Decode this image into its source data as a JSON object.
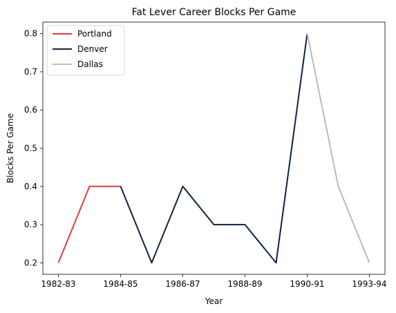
{
  "chart_data": {
    "type": "line",
    "title": "Fat Lever Career Blocks Per Game",
    "xlabel": "Year",
    "ylabel": "Blocks Per Game",
    "x_tick_labels": [
      "1982-83",
      "1984-85",
      "1986-87",
      "1988-89",
      "1990-91",
      "1993-94"
    ],
    "x_tick_index": [
      0,
      2,
      4,
      6,
      8,
      10
    ],
    "y_ticks": [
      0.2,
      0.3,
      0.4,
      0.5,
      0.6,
      0.7,
      0.8
    ],
    "ylim": [
      0.17,
      0.83
    ],
    "xlim": [
      -0.5,
      10.5
    ],
    "grid": false,
    "legend_position": "upper-left",
    "series": [
      {
        "name": "Portland",
        "color": "#E03A3E",
        "x": [
          0,
          1,
          2
        ],
        "values": [
          0.2,
          0.4,
          0.4
        ]
      },
      {
        "name": "Denver",
        "color": "#0E2240",
        "x": [
          2,
          3,
          4,
          5,
          6,
          7,
          8
        ],
        "values": [
          0.4,
          0.2,
          0.4,
          0.3,
          0.3,
          0.2,
          0.8
        ]
      },
      {
        "name": "Dallas",
        "color": "#BBBBBB",
        "x": [
          8,
          9,
          10
        ],
        "values": [
          0.8,
          0.4,
          0.2
        ]
      }
    ]
  }
}
